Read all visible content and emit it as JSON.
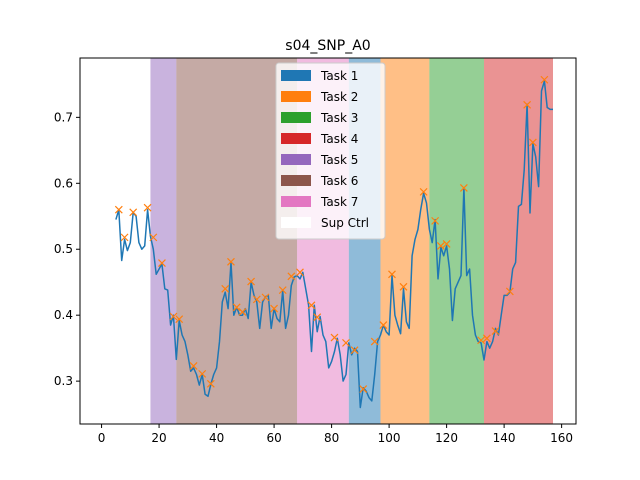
{
  "chart_data": {
    "type": "line",
    "title": "s04_SNP_A0",
    "xlabel": "",
    "ylabel": "",
    "xlim": [
      -7.5,
      165
    ],
    "ylim": [
      0.235,
      0.79
    ],
    "xticks": [
      0,
      20,
      40,
      60,
      80,
      100,
      120,
      140,
      160
    ],
    "yticks": [
      0.3,
      0.4,
      0.5,
      0.6,
      0.7
    ],
    "ytick_labels": [
      "0.3",
      "0.4",
      "0.5",
      "0.6",
      "0.7"
    ],
    "regions": [
      {
        "label": "Task 5",
        "start": 17,
        "end": 26,
        "color": "#9467bd"
      },
      {
        "label": "Task 6",
        "start": 26,
        "end": 68,
        "color": "#8c564b"
      },
      {
        "label": "Task 7",
        "start": 68,
        "end": 86,
        "color": "#e377c2"
      },
      {
        "label": "Task 1",
        "start": 86,
        "end": 97,
        "color": "#1f77b4"
      },
      {
        "label": "Task 2",
        "start": 97,
        "end": 114,
        "color": "#ff7f0e"
      },
      {
        "label": "Task 3",
        "start": 114,
        "end": 133,
        "color": "#2ca02c"
      },
      {
        "label": "Task 4",
        "start": 133,
        "end": 157,
        "color": "#d62728"
      }
    ],
    "legend": {
      "placement": "top-center",
      "entries": [
        {
          "label": "Task 1",
          "color": "#1f77b4"
        },
        {
          "label": "Task 2",
          "color": "#ff7f0e"
        },
        {
          "label": "Task 3",
          "color": "#2ca02c"
        },
        {
          "label": "Task 4",
          "color": "#d62728"
        },
        {
          "label": "Task 5",
          "color": "#9467bd"
        },
        {
          "label": "Task 6",
          "color": "#8c564b"
        },
        {
          "label": "Task 7",
          "color": "#e377c2"
        },
        {
          "label": "Sup Ctrl",
          "color": "#ffffff"
        }
      ]
    },
    "series": [
      {
        "name": "signal",
        "color": "#1f77b4",
        "points": [
          [
            5,
            0.545
          ],
          [
            6,
            0.56
          ],
          [
            7,
            0.483
          ],
          [
            8,
            0.515
          ],
          [
            9,
            0.498
          ],
          [
            10,
            0.51
          ],
          [
            11,
            0.556
          ],
          [
            12,
            0.55
          ],
          [
            13,
            0.51
          ],
          [
            14,
            0.5
          ],
          [
            15,
            0.505
          ],
          [
            16,
            0.56
          ],
          [
            17,
            0.52
          ],
          [
            18,
            0.5
          ],
          [
            19,
            0.462
          ],
          [
            20,
            0.47
          ],
          [
            21,
            0.478
          ],
          [
            22,
            0.44
          ],
          [
            23,
            0.438
          ],
          [
            24,
            0.385
          ],
          [
            25,
            0.4
          ],
          [
            26,
            0.333
          ],
          [
            27,
            0.392
          ],
          [
            28,
            0.37
          ],
          [
            29,
            0.36
          ],
          [
            30,
            0.34
          ],
          [
            31,
            0.315
          ],
          [
            32,
            0.32
          ],
          [
            33,
            0.31
          ],
          [
            34,
            0.294
          ],
          [
            35,
            0.31
          ],
          [
            36,
            0.28
          ],
          [
            37,
            0.277
          ],
          [
            38,
            0.295
          ],
          [
            39,
            0.31
          ],
          [
            40,
            0.32
          ],
          [
            41,
            0.36
          ],
          [
            42,
            0.42
          ],
          [
            43,
            0.435
          ],
          [
            44,
            0.41
          ],
          [
            45,
            0.48
          ],
          [
            46,
            0.4
          ],
          [
            47,
            0.412
          ],
          [
            48,
            0.4
          ],
          [
            49,
            0.4
          ],
          [
            50,
            0.41
          ],
          [
            51,
            0.395
          ],
          [
            52,
            0.45
          ],
          [
            53,
            0.43
          ],
          [
            54,
            0.42
          ],
          [
            55,
            0.38
          ],
          [
            56,
            0.42
          ],
          [
            57,
            0.428
          ],
          [
            58,
            0.43
          ],
          [
            59,
            0.38
          ],
          [
            60,
            0.41
          ],
          [
            61,
            0.395
          ],
          [
            62,
            0.39
          ],
          [
            63,
            0.437
          ],
          [
            64,
            0.38
          ],
          [
            65,
            0.4
          ],
          [
            66,
            0.445
          ],
          [
            67,
            0.458
          ],
          [
            68,
            0.46
          ],
          [
            69,
            0.455
          ],
          [
            70,
            0.465
          ],
          [
            71,
            0.44
          ],
          [
            72,
            0.415
          ],
          [
            73,
            0.345
          ],
          [
            74,
            0.415
          ],
          [
            75,
            0.375
          ],
          [
            76,
            0.398
          ],
          [
            77,
            0.37
          ],
          [
            78,
            0.36
          ],
          [
            79,
            0.32
          ],
          [
            80,
            0.33
          ],
          [
            81,
            0.345
          ],
          [
            82,
            0.365
          ],
          [
            83,
            0.34
          ],
          [
            84,
            0.3
          ],
          [
            85,
            0.31
          ],
          [
            86,
            0.358
          ],
          [
            87,
            0.34
          ],
          [
            88,
            0.35
          ],
          [
            89,
            0.345
          ],
          [
            90,
            0.26
          ],
          [
            91,
            0.29
          ],
          [
            92,
            0.285
          ],
          [
            93,
            0.275
          ],
          [
            94,
            0.27
          ],
          [
            95,
            0.31
          ],
          [
            96,
            0.36
          ],
          [
            97,
            0.37
          ],
          [
            98,
            0.385
          ],
          [
            99,
            0.375
          ],
          [
            100,
            0.37
          ],
          [
            101,
            0.46
          ],
          [
            102,
            0.4
          ],
          [
            103,
            0.385
          ],
          [
            104,
            0.372
          ],
          [
            105,
            0.44
          ],
          [
            106,
            0.39
          ],
          [
            107,
            0.38
          ],
          [
            108,
            0.49
          ],
          [
            109,
            0.515
          ],
          [
            110,
            0.53
          ],
          [
            111,
            0.56
          ],
          [
            112,
            0.585
          ],
          [
            113,
            0.57
          ],
          [
            114,
            0.53
          ],
          [
            115,
            0.51
          ],
          [
            116,
            0.545
          ],
          [
            117,
            0.455
          ],
          [
            118,
            0.503
          ],
          [
            119,
            0.49
          ],
          [
            120,
            0.505
          ],
          [
            121,
            0.47
          ],
          [
            122,
            0.392
          ],
          [
            123,
            0.44
          ],
          [
            124,
            0.45
          ],
          [
            125,
            0.46
          ],
          [
            126,
            0.593
          ],
          [
            127,
            0.46
          ],
          [
            128,
            0.47
          ],
          [
            129,
            0.4
          ],
          [
            130,
            0.37
          ],
          [
            131,
            0.36
          ],
          [
            132,
            0.358
          ],
          [
            133,
            0.332
          ],
          [
            134,
            0.36
          ],
          [
            135,
            0.35
          ],
          [
            136,
            0.36
          ],
          [
            137,
            0.38
          ],
          [
            138,
            0.37
          ],
          [
            139,
            0.4
          ],
          [
            140,
            0.43
          ],
          [
            141,
            0.43
          ],
          [
            142,
            0.435
          ],
          [
            143,
            0.47
          ],
          [
            144,
            0.48
          ],
          [
            145,
            0.565
          ],
          [
            146,
            0.568
          ],
          [
            147,
            0.62
          ],
          [
            148,
            0.72
          ],
          [
            149,
            0.555
          ],
          [
            150,
            0.66
          ],
          [
            151,
            0.64
          ],
          [
            152,
            0.595
          ],
          [
            153,
            0.74
          ],
          [
            154,
            0.755
          ],
          [
            155,
            0.715
          ],
          [
            156,
            0.712
          ],
          [
            157,
            0.712
          ]
        ]
      },
      {
        "name": "peaks",
        "color": "#ff7f0e",
        "marker": "x",
        "points": [
          [
            6,
            0.56
          ],
          [
            8,
            0.518
          ],
          [
            11,
            0.556
          ],
          [
            16,
            0.563
          ],
          [
            18,
            0.518
          ],
          [
            21,
            0.479
          ],
          [
            25,
            0.398
          ],
          [
            27,
            0.394
          ],
          [
            32,
            0.323
          ],
          [
            35,
            0.311
          ],
          [
            38,
            0.296
          ],
          [
            43,
            0.44
          ],
          [
            45,
            0.481
          ],
          [
            47,
            0.412
          ],
          [
            49,
            0.405
          ],
          [
            52,
            0.451
          ],
          [
            54,
            0.424
          ],
          [
            57,
            0.427
          ],
          [
            60,
            0.41
          ],
          [
            63,
            0.438
          ],
          [
            66,
            0.459
          ],
          [
            69,
            0.465
          ],
          [
            73,
            0.415
          ],
          [
            75,
            0.397
          ],
          [
            81,
            0.366
          ],
          [
            85,
            0.358
          ],
          [
            88,
            0.347
          ],
          [
            91,
            0.288
          ],
          [
            95,
            0.36
          ],
          [
            98,
            0.385
          ],
          [
            101,
            0.462
          ],
          [
            105,
            0.443
          ],
          [
            112,
            0.587
          ],
          [
            116,
            0.543
          ],
          [
            118,
            0.505
          ],
          [
            120,
            0.508
          ],
          [
            126,
            0.593
          ],
          [
            132,
            0.362
          ],
          [
            134,
            0.365
          ],
          [
            137,
            0.376
          ],
          [
            142,
            0.436
          ],
          [
            148,
            0.719
          ],
          [
            150,
            0.662
          ],
          [
            154,
            0.757
          ]
        ]
      }
    ]
  }
}
